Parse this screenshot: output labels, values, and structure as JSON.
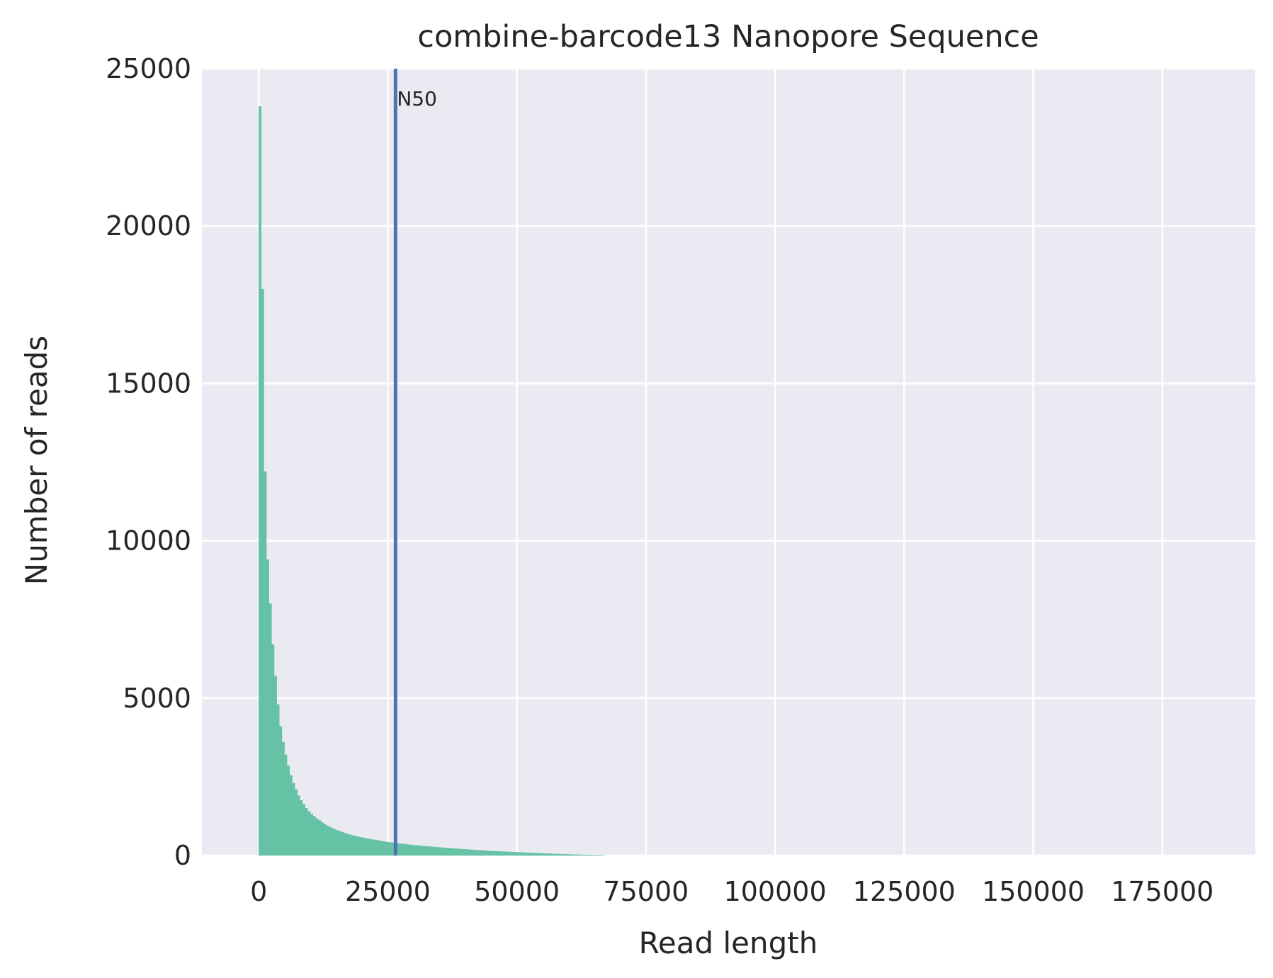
{
  "chart_data": {
    "type": "bar",
    "title": "combine-barcode13 Nanopore Sequence",
    "xlabel": "Read length",
    "ylabel": "Number of reads",
    "xlim": [
      -11000,
      193000
    ],
    "ylim": [
      0,
      25000
    ],
    "xticks": [
      0,
      25000,
      50000,
      75000,
      100000,
      125000,
      150000,
      175000
    ],
    "yticks": [
      0,
      5000,
      10000,
      15000,
      20000,
      25000
    ],
    "grid": true,
    "legend": "none",
    "colors": {
      "background": "#eaeaf2",
      "grid": "#ffffff",
      "bars": "#66c2a5",
      "n50_line": "#4c72b0",
      "text": "#262626"
    },
    "bin_width": 500,
    "bins": {
      "start": [
        0,
        500,
        1000,
        1500,
        2000,
        2500,
        3000,
        3500,
        4000,
        4500,
        5000,
        5500,
        6000,
        6500,
        7000,
        7500,
        8000,
        8500,
        9000,
        9500,
        10000,
        10500,
        11000,
        11500,
        12000,
        12500,
        13000,
        13500,
        14000,
        14500,
        15000,
        15500,
        16000,
        16500,
        17000,
        17500,
        18000,
        18500,
        19000,
        19500,
        20000,
        20500,
        21000,
        21500,
        22000,
        22500,
        23000,
        23500,
        24000,
        24500,
        25000,
        25500,
        26000,
        26500,
        27000,
        27500,
        28000,
        28500,
        29000,
        29500,
        30000,
        30500,
        31000,
        31500,
        32000,
        32500,
        33000,
        33500,
        34000,
        34500,
        35000,
        35500,
        36000,
        36500,
        37000,
        37500,
        38000,
        38500,
        39000,
        39500,
        40000,
        40500,
        41000,
        41500,
        42000,
        42500,
        43000,
        43500,
        44000,
        44500,
        45000,
        45500,
        46000,
        46500,
        47000,
        47500,
        48000,
        48500,
        49000,
        49500,
        50000,
        50500,
        51000,
        51500,
        52000,
        52500,
        53000,
        53500,
        54000,
        54500,
        55000,
        55500,
        56000,
        56500,
        57000,
        57500,
        58000,
        58500,
        59000,
        59500,
        60000,
        60500,
        61000,
        61500,
        62000,
        62500,
        63000,
        63500,
        64000,
        64500,
        65000,
        65500,
        66000,
        66500,
        67000,
        67500
      ],
      "counts": [
        23800,
        18000,
        12200,
        9400,
        8000,
        6700,
        5700,
        4800,
        4100,
        3600,
        3200,
        2850,
        2550,
        2300,
        2100,
        1900,
        1750,
        1620,
        1500,
        1400,
        1320,
        1250,
        1180,
        1120,
        1060,
        1000,
        950,
        910,
        870,
        830,
        800,
        770,
        740,
        710,
        680,
        660,
        640,
        620,
        600,
        580,
        560,
        545,
        530,
        515,
        500,
        490,
        475,
        460,
        445,
        430,
        420,
        410,
        400,
        390,
        380,
        370,
        360,
        350,
        340,
        332,
        325,
        318,
        310,
        303,
        296,
        289,
        282,
        275,
        268,
        261,
        254,
        247,
        240,
        234,
        228,
        222,
        216,
        210,
        204,
        198,
        192,
        186,
        180,
        175,
        170,
        165,
        160,
        155,
        150,
        145,
        140,
        136,
        132,
        128,
        124,
        120,
        116,
        112,
        108,
        104,
        100,
        96,
        92,
        88,
        84,
        80,
        76,
        72,
        69,
        66,
        63,
        60,
        57,
        54,
        51,
        48,
        45,
        42,
        39,
        36,
        33,
        30,
        28,
        26,
        24,
        22,
        20,
        18,
        16,
        14,
        12,
        10,
        8,
        6
      ]
    },
    "n50": {
      "label": "N50",
      "x": 26500
    }
  }
}
